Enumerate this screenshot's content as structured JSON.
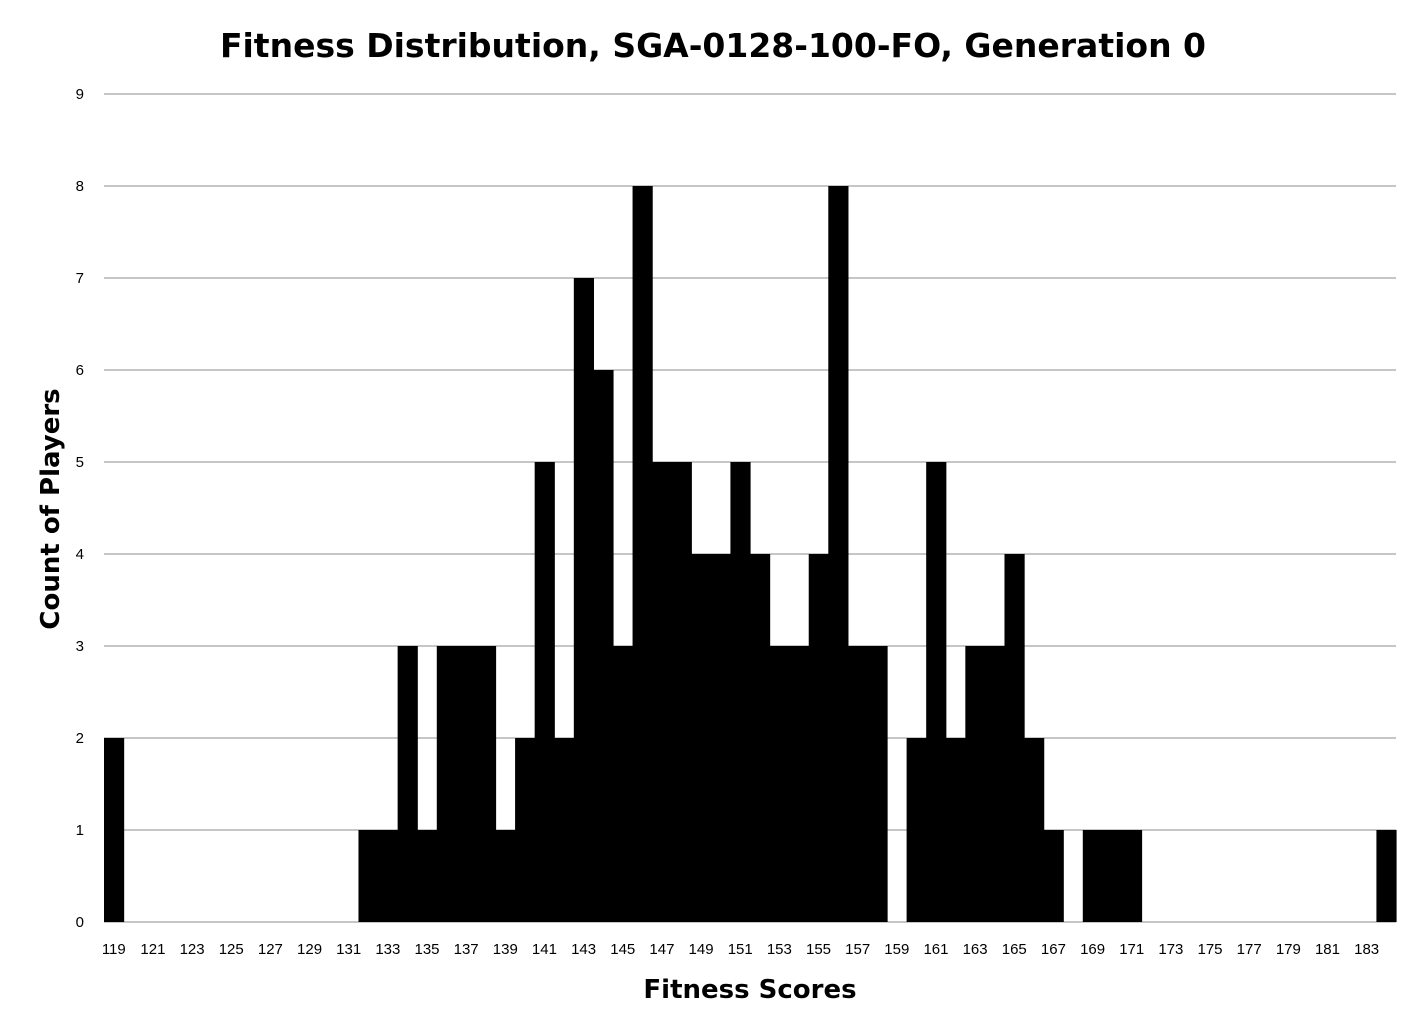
{
  "chart_data": {
    "type": "bar",
    "title": "Fitness Distribution, SGA-0128-100-FO, Generation 0",
    "xlabel": "Fitness Scores",
    "ylabel": "Count of Players",
    "ylim": [
      0,
      9
    ],
    "yticks": [
      0,
      1,
      2,
      3,
      4,
      5,
      6,
      7,
      8,
      9
    ],
    "grid": true,
    "legend": "none",
    "bar_color": "#000000",
    "categories": [
      119,
      120,
      121,
      122,
      123,
      124,
      125,
      126,
      127,
      128,
      129,
      130,
      131,
      132,
      133,
      134,
      135,
      136,
      137,
      138,
      139,
      140,
      141,
      142,
      143,
      144,
      145,
      146,
      147,
      148,
      149,
      150,
      151,
      152,
      153,
      154,
      155,
      156,
      157,
      158,
      159,
      160,
      161,
      162,
      163,
      164,
      165,
      166,
      167,
      168,
      169,
      170,
      171,
      172,
      173,
      174,
      175,
      176,
      177,
      178,
      179,
      180,
      181,
      182,
      183,
      184
    ],
    "xtick_labels": [
      "119",
      "121",
      "123",
      "125",
      "127",
      "129",
      "131",
      "133",
      "135",
      "137",
      "139",
      "141",
      "143",
      "145",
      "147",
      "149",
      "151",
      "153",
      "155",
      "157",
      "159",
      "161",
      "163",
      "165",
      "167",
      "169",
      "171",
      "173",
      "175",
      "177",
      "179",
      "181",
      "183"
    ],
    "values": [
      2,
      0,
      0,
      0,
      0,
      0,
      0,
      0,
      0,
      0,
      0,
      0,
      0,
      1,
      1,
      3,
      1,
      3,
      3,
      3,
      1,
      2,
      5,
      2,
      7,
      6,
      3,
      8,
      5,
      5,
      4,
      4,
      5,
      4,
      3,
      3,
      4,
      8,
      3,
      3,
      0,
      2,
      5,
      2,
      3,
      3,
      4,
      2,
      1,
      0,
      1,
      1,
      1,
      0,
      0,
      0,
      0,
      0,
      0,
      0,
      0,
      0,
      0,
      0,
      0,
      1
    ]
  }
}
